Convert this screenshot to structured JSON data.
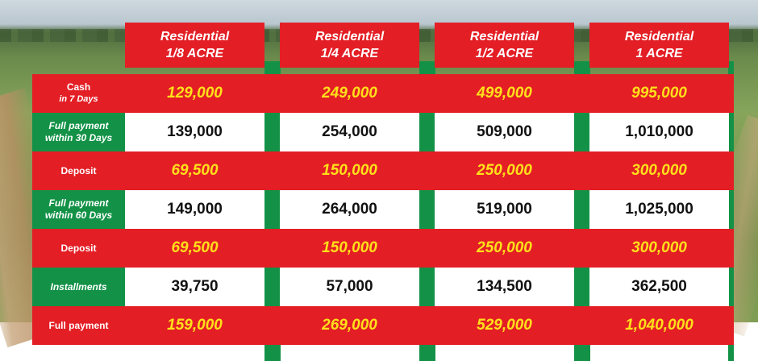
{
  "columns": [
    {
      "line1": "Residential",
      "line2": "1/8 ACRE"
    },
    {
      "line1": "Residential",
      "line2": "1/4 ACRE"
    },
    {
      "line1": "Residential",
      "line2": "1/2 ACRE"
    },
    {
      "line1": "Residential",
      "line2": "1 ACRE"
    }
  ],
  "rows": [
    {
      "label": "Cash",
      "sublabel": "in 7 Days",
      "style": "red",
      "values": [
        "129,000",
        "249,000",
        "499,000",
        "995,000"
      ]
    },
    {
      "label": "Full payment",
      "sublabel": "within 30 Days",
      "style": "white",
      "values": [
        "139,000",
        "254,000",
        "509,000",
        "1,010,000"
      ]
    },
    {
      "label": "Deposit",
      "sublabel": "",
      "style": "red",
      "values": [
        "69,500",
        "150,000",
        "250,000",
        "300,000"
      ]
    },
    {
      "label": "Full payment",
      "sublabel": "within 60 Days",
      "style": "white",
      "values": [
        "149,000",
        "264,000",
        "519,000",
        "1,025,000"
      ]
    },
    {
      "label": "Deposit",
      "sublabel": "",
      "style": "red",
      "values": [
        "69,500",
        "150,000",
        "250,000",
        "300,000"
      ]
    },
    {
      "label": "Installments",
      "sublabel": "",
      "style": "white",
      "values": [
        "39,750",
        "57,000",
        "134,500",
        "362,500"
      ]
    },
    {
      "label": "Full payment",
      "sublabel": "",
      "style": "red",
      "values": [
        "159,000",
        "269,000",
        "529,000",
        "1,040,000"
      ]
    }
  ],
  "colors": {
    "red": "#e31e25",
    "green": "#139247",
    "yellow": "#ffe01a",
    "white": "#ffffff"
  }
}
